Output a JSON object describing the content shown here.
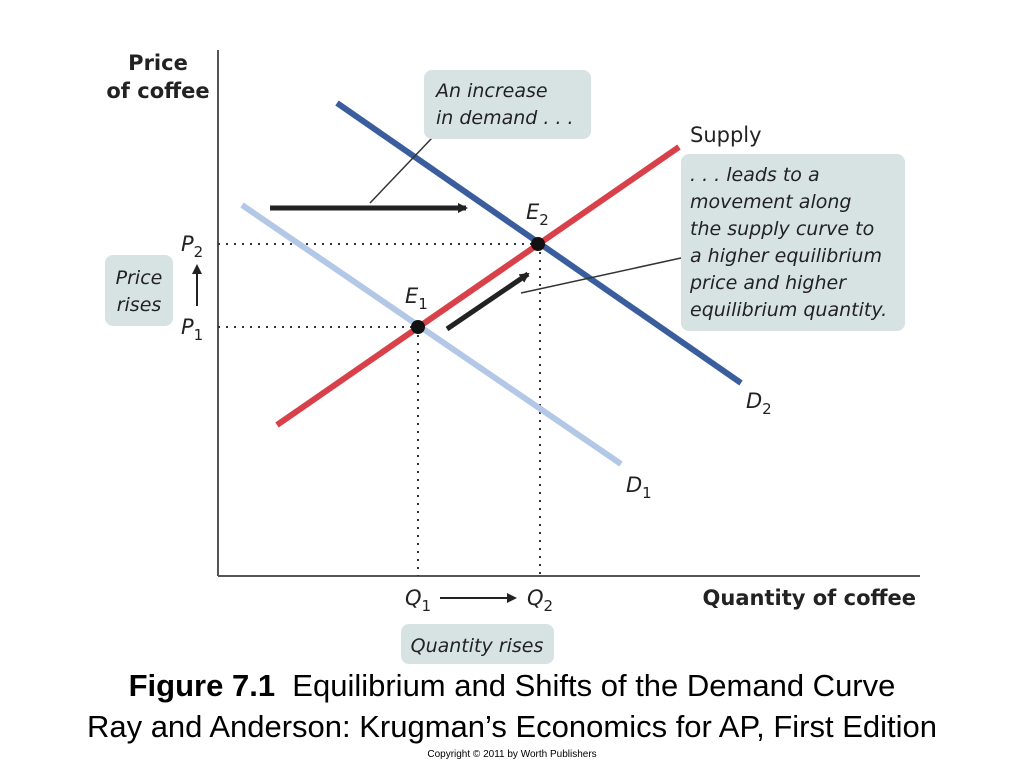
{
  "axes": {
    "y_title_line1": "Price",
    "y_title_line2": "of coffee",
    "x_title": "Quantity of coffee"
  },
  "curves": {
    "supply": {
      "label": "Supply",
      "color": "#d9414a"
    },
    "d1": {
      "label": "D",
      "sub": "1",
      "color": "#b3c8e6"
    },
    "d2": {
      "label": "D",
      "sub": "2",
      "color": "#3a5d9e"
    }
  },
  "points": {
    "e1": {
      "label": "E",
      "sub": "1"
    },
    "e2": {
      "label": "E",
      "sub": "2"
    }
  },
  "ticks": {
    "p1": {
      "label": "P",
      "sub": "1"
    },
    "p2": {
      "label": "P",
      "sub": "2"
    },
    "q1": {
      "label": "Q",
      "sub": "1"
    },
    "q2": {
      "label": "Q",
      "sub": "2"
    }
  },
  "annotations": {
    "demand_increase": [
      "An increase",
      "in demand . . ."
    ],
    "movement": [
      ". . . leads to a",
      "movement along",
      "the supply curve to",
      "a higher equilibrium",
      "price and higher",
      "equilibrium quantity."
    ],
    "price_rises": [
      "Price",
      "rises"
    ],
    "quantity_rises": "Quantity rises"
  },
  "caption": {
    "figure_number": "Figure 7.1",
    "figure_title": "Equilibrium and Shifts of the Demand Curve",
    "source": "Ray and Anderson: Krugman’s Economics for AP, First Edition",
    "copyright": "Copyright © 2011 by Worth Publishers"
  }
}
